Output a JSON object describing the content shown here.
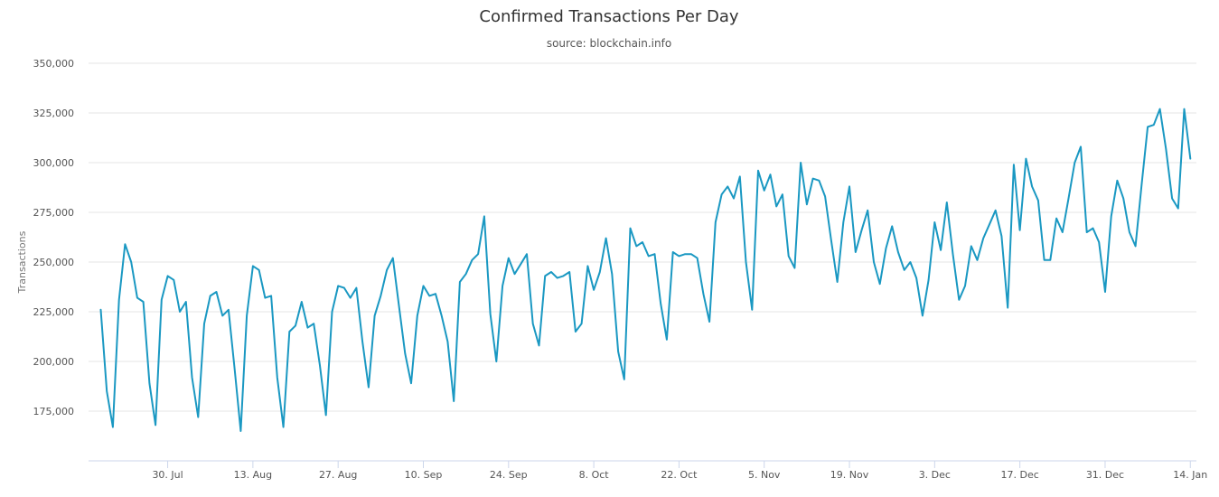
{
  "chart_data": {
    "type": "line",
    "title": "Confirmed Transactions Per Day",
    "subtitle": "source: blockchain.info",
    "ylabel": "Transactions",
    "xlabel": "",
    "ylim": [
      150000,
      350000
    ],
    "yticks": [
      175000,
      200000,
      225000,
      250000,
      275000,
      300000,
      325000,
      350000
    ],
    "ytick_labels": [
      "175,000",
      "200,000",
      "225,000",
      "250,000",
      "275,000",
      "300,000",
      "325,000",
      "350,000"
    ],
    "xlim": [
      "2015-07-17",
      "2016-01-15"
    ],
    "xticks": [
      "2015-07-30",
      "2015-08-13",
      "2015-08-27",
      "2015-09-10",
      "2015-09-24",
      "2015-10-08",
      "2015-10-22",
      "2015-11-05",
      "2015-11-19",
      "2015-12-03",
      "2015-12-17",
      "2015-12-31",
      "2016-01-14"
    ],
    "xtick_labels": [
      "30. Jul",
      "13. Aug",
      "27. Aug",
      "10. Sep",
      "24. Sep",
      "8. Oct",
      "22. Oct",
      "5. Nov",
      "19. Nov",
      "3. Dec",
      "17. Dec",
      "31. Dec",
      "14. Jan"
    ],
    "grid": true,
    "legend": "none",
    "color": "#1a98c2",
    "series": [
      {
        "start_date": "2015-07-19",
        "step_days": 1,
        "values": [
          226000,
          185000,
          167000,
          231000,
          259000,
          250000,
          232000,
          230000,
          189000,
          168000,
          231000,
          243000,
          241000,
          225000,
          230000,
          192000,
          172000,
          219000,
          233000,
          235000,
          223000,
          226000,
          196000,
          165000,
          223000,
          248000,
          246000,
          232000,
          233000,
          192000,
          167000,
          215000,
          218000,
          230000,
          217000,
          219000,
          198000,
          173000,
          225000,
          238000,
          237000,
          232000,
          237000,
          210000,
          187000,
          223000,
          233000,
          246000,
          252000,
          228000,
          204000,
          189000,
          223000,
          238000,
          233000,
          234000,
          223000,
          210000,
          180000,
          240000,
          244000,
          251000,
          254000,
          273000,
          224000,
          200000,
          238000,
          252000,
          244000,
          249000,
          254000,
          219000,
          208000,
          243000,
          245000,
          242000,
          243000,
          245000,
          215000,
          219000,
          248000,
          236000,
          245000,
          262000,
          244000,
          205000,
          191000,
          267000,
          258000,
          260000,
          253000,
          254000,
          229000,
          211000,
          255000,
          253000,
          254000,
          254000,
          252000,
          234000,
          220000,
          270000,
          284000,
          288000,
          282000,
          293000,
          250000,
          226000,
          296000,
          286000,
          294000,
          278000,
          284000,
          253000,
          247000,
          300000,
          279000,
          292000,
          291000,
          283000,
          261000,
          240000,
          270000,
          288000,
          255000,
          266000,
          276000,
          250000,
          239000,
          257000,
          268000,
          255000,
          246000,
          250000,
          242000,
          223000,
          241000,
          270000,
          256000,
          280000,
          254000,
          231000,
          238000,
          258000,
          251000,
          262000,
          269000,
          276000,
          263000,
          227000,
          299000,
          266000,
          302000,
          288000,
          281000,
          251000,
          251000,
          272000,
          265000,
          282000,
          300000,
          308000,
          265000,
          267000,
          260000,
          235000,
          273000,
          291000,
          282000,
          265000,
          258000,
          289000,
          318000,
          319000,
          327000,
          307000,
          282000,
          277000,
          327000,
          302000
        ]
      }
    ]
  }
}
